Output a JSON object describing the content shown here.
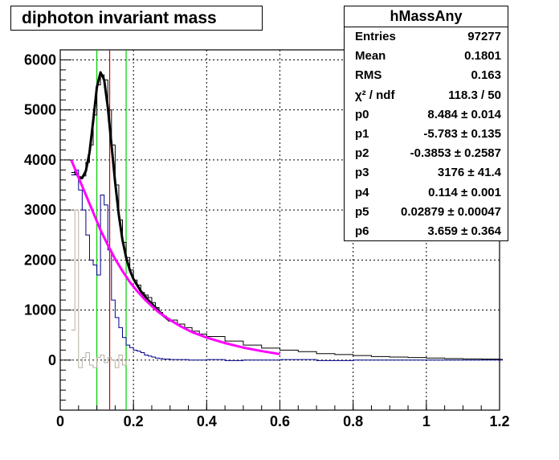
{
  "title": "diphoton invariant mass",
  "stats": {
    "name": "hMassAny",
    "rows": [
      {
        "label": "Entries",
        "value": "97277"
      },
      {
        "label": "Mean",
        "value": "0.1801"
      },
      {
        "label": "RMS",
        "value": "0.163"
      },
      {
        "label": "χ² / ndf",
        "value": "118.3 / 50"
      },
      {
        "label": "p0",
        "value": "8.484 ± 0.014"
      },
      {
        "label": "p1",
        "value": "-5.783 ± 0.135"
      },
      {
        "label": "p2",
        "value": "-0.3853 ± 0.2587"
      },
      {
        "label": "p3",
        "value": "3176 ± 41.4"
      },
      {
        "label": "p4",
        "value": "0.114 ± 0.001"
      },
      {
        "label": "p5",
        "value": "0.02879 ± 0.00047"
      },
      {
        "label": "p6",
        "value": "3.659 ± 0.364"
      }
    ]
  },
  "chart_data": {
    "type": "line",
    "title": "diphoton invariant mass",
    "xlabel": "",
    "ylabel": "",
    "xlim": [
      0,
      1.2
    ],
    "ylim": [
      -1000,
      6200
    ],
    "xticks": [
      "0",
      "0.2",
      "0.4",
      "0.6",
      "0.8",
      "1",
      "1.2"
    ],
    "yticks": [
      "0",
      "1000",
      "2000",
      "3000",
      "4000",
      "5000",
      "6000"
    ],
    "grid": true,
    "vertical_lines": [
      {
        "x": 0.1,
        "color": "#00cc00"
      },
      {
        "x": 0.135,
        "color": "#cc0000"
      },
      {
        "x": 0.18,
        "color": "#00cc00"
      }
    ],
    "series": [
      {
        "kind": "histogram",
        "color": "#000000",
        "x": [
          0.03,
          0.04,
          0.05,
          0.06,
          0.07,
          0.08,
          0.09,
          0.1,
          0.11,
          0.12,
          0.13,
          0.14,
          0.15,
          0.16,
          0.17,
          0.18,
          0.19,
          0.2,
          0.21,
          0.22,
          0.23,
          0.24,
          0.25,
          0.26,
          0.27,
          0.28,
          0.29,
          0.3,
          0.32,
          0.34,
          0.36,
          0.38,
          0.4,
          0.45,
          0.5,
          0.55,
          0.6,
          0.65,
          0.7,
          0.75,
          0.8,
          0.85,
          0.9,
          0.95,
          1.0,
          1.05,
          1.1,
          1.15,
          1.2
        ],
        "values": [
          3750,
          3700,
          3620,
          3680,
          3950,
          4300,
          4900,
          5500,
          5700,
          5600,
          5000,
          4300,
          3500,
          2800,
          2350,
          2050,
          1800,
          1600,
          1500,
          1350,
          1300,
          1250,
          1150,
          1050,
          950,
          880,
          830,
          800,
          720,
          650,
          580,
          520,
          470,
          380,
          300,
          240,
          200,
          170,
          130,
          110,
          90,
          70,
          60,
          50,
          40,
          30,
          25,
          20,
          15
        ]
      },
      {
        "kind": "histogram",
        "color": "#00008b",
        "x": [
          0.03,
          0.04,
          0.05,
          0.06,
          0.07,
          0.08,
          0.09,
          0.1,
          0.11,
          0.12,
          0.13,
          0.14,
          0.15,
          0.16,
          0.17,
          0.18,
          0.19,
          0.2,
          0.21,
          0.22,
          0.23,
          0.24,
          0.25,
          0.26,
          0.27,
          0.28,
          0.3,
          0.35,
          0.4,
          0.45,
          0.5,
          0.6,
          0.7,
          0.8,
          0.9,
          1.0,
          1.1,
          1.2
        ],
        "values": [
          3700,
          3800,
          3400,
          3000,
          2500,
          2000,
          1900,
          1700,
          3300,
          3100,
          2200,
          1200,
          850,
          650,
          450,
          300,
          250,
          200,
          180,
          150,
          100,
          80,
          60,
          40,
          30,
          20,
          10,
          0,
          10,
          -10,
          0,
          10,
          -10,
          0,
          0,
          0,
          0,
          0
        ]
      },
      {
        "kind": "histogram",
        "color": "#b8b0a0",
        "x": [
          0.03,
          0.04,
          0.05,
          0.06,
          0.07,
          0.08,
          0.09,
          0.1,
          0.11,
          0.12,
          0.13,
          0.14,
          0.15,
          0.16,
          0.17,
          0.18
        ],
        "values": [
          600,
          3000,
          -150,
          50,
          150,
          -100,
          -150,
          50,
          100,
          -50,
          50,
          0,
          -150,
          100,
          -100,
          0
        ]
      },
      {
        "kind": "fit",
        "color": "#000000",
        "x": [
          0.04,
          0.05,
          0.06,
          0.07,
          0.08,
          0.09,
          0.1,
          0.11,
          0.12,
          0.13,
          0.14,
          0.15,
          0.16,
          0.17,
          0.18,
          0.19,
          0.2,
          0.22,
          0.24,
          0.26,
          0.28,
          0.3
        ],
        "values": [
          3780,
          3660,
          3640,
          3780,
          4150,
          4780,
          5450,
          5750,
          5600,
          5050,
          4300,
          3550,
          2900,
          2400,
          2050,
          1800,
          1620,
          1380,
          1200,
          1050,
          900,
          780
        ]
      },
      {
        "kind": "fit",
        "color": "#ff00ff",
        "x": [
          0.03,
          0.05,
          0.07,
          0.09,
          0.11,
          0.13,
          0.15,
          0.17,
          0.19,
          0.21,
          0.23,
          0.25,
          0.27,
          0.3,
          0.33,
          0.36,
          0.4,
          0.45,
          0.5,
          0.55,
          0.6
        ],
        "values": [
          4000,
          3650,
          3300,
          2950,
          2600,
          2300,
          2020,
          1780,
          1560,
          1380,
          1220,
          1080,
          950,
          800,
          670,
          560,
          450,
          340,
          250,
          180,
          120
        ]
      }
    ]
  }
}
